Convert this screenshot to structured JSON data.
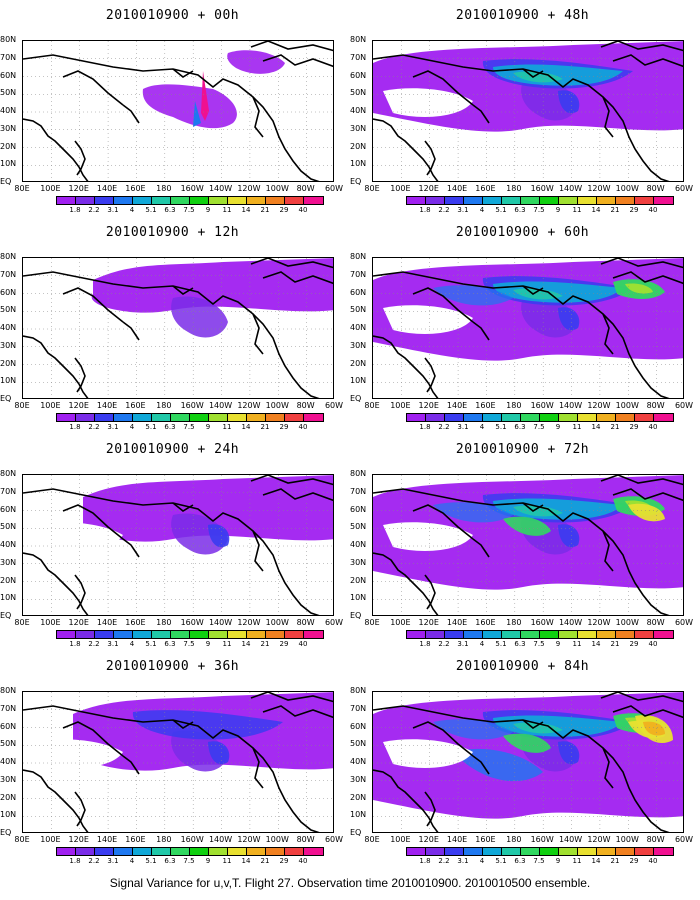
{
  "caption": "Signal Variance for u,v,T. Flight 27. Observation time 2010010900. 2010010500 ensemble.",
  "panels": [
    {
      "title": "2010010900 + 00h",
      "intensity": 0
    },
    {
      "title": "2010010900 + 48h",
      "intensity": 4
    },
    {
      "title": "2010010900 + 12h",
      "intensity": 1
    },
    {
      "title": "2010010900 + 60h",
      "intensity": 5
    },
    {
      "title": "2010010900 + 24h",
      "intensity": 2
    },
    {
      "title": "2010010900 + 72h",
      "intensity": 6
    },
    {
      "title": "2010010900 + 36h",
      "intensity": 3
    },
    {
      "title": "2010010900 + 84h",
      "intensity": 7
    }
  ],
  "y_axis_labels": [
    "80N",
    "70N",
    "60N",
    "50N",
    "40N",
    "30N",
    "20N",
    "10N",
    "EQ"
  ],
  "x_axis_labels": [
    "80E",
    "100E",
    "120E",
    "140E",
    "160E",
    "180",
    "160W",
    "140W",
    "120W",
    "100W",
    "80W",
    "60W"
  ],
  "colorbar_labels": [
    "1.8",
    "2.2",
    "3.1",
    "4",
    "5.1",
    "6.3",
    "7.5",
    "9",
    "11",
    "14",
    "21",
    "29",
    "40"
  ],
  "colorbar_colors": [
    "#a020f0",
    "#7a2ce8",
    "#3a3cf0",
    "#1e78f0",
    "#10a8d8",
    "#20c8a8",
    "#30d860",
    "#10d010",
    "#a0e030",
    "#e8e030",
    "#f0b020",
    "#f08020",
    "#f04040",
    "#f01090"
  ]
}
